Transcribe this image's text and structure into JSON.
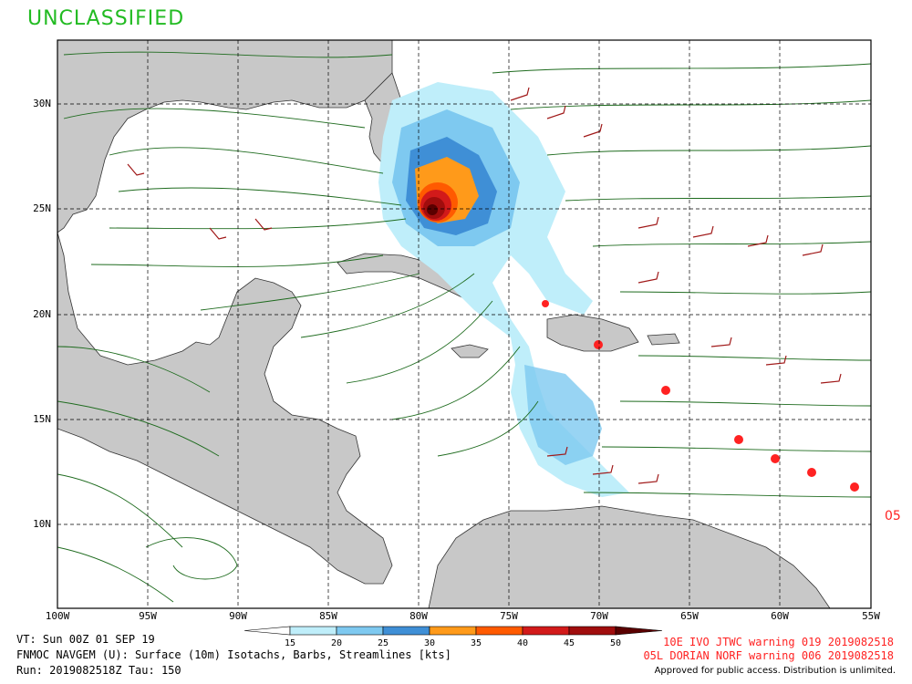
{
  "classification": {
    "text": "UNCLASSIFIED",
    "color": "#22bb22"
  },
  "map": {
    "lat_labels": [
      "30N",
      "25N",
      "20N",
      "15N",
      "10N"
    ],
    "lon_labels": [
      "100W",
      "95W",
      "90W",
      "85W",
      "80W",
      "75W",
      "70W",
      "65W",
      "60W",
      "55W"
    ],
    "land_color": "#c8c8c8",
    "streamline_color": "#1e6b1e",
    "barb_color": "#a01818",
    "storm_symbol_color": "#ff2222",
    "storm_label": "05"
  },
  "legend": {
    "ticks": [
      "15",
      "20",
      "25",
      "30",
      "35",
      "40",
      "45",
      "50"
    ],
    "colors": [
      "#bfeefa",
      "#7ec9f0",
      "#3f8fd6",
      "#ff9a1a",
      "#ff5a00",
      "#d21a1a",
      "#a00d0d",
      "#5a0000"
    ]
  },
  "info": {
    "valid_time": "VT: Sun 00Z 01 SEP 19",
    "product": "FNMOC NAVGEM (U): Surface (10m) Isotachs, Barbs, Streamlines [kts]",
    "run": "Run: 2019082518Z Tau: 150"
  },
  "warnings": [
    "10E IVO JTWC warning 019 2019082518",
    "05L DORIAN NORF warning 006 2019082518"
  ],
  "approval": "Approved for public access. Distribution is unlimited."
}
